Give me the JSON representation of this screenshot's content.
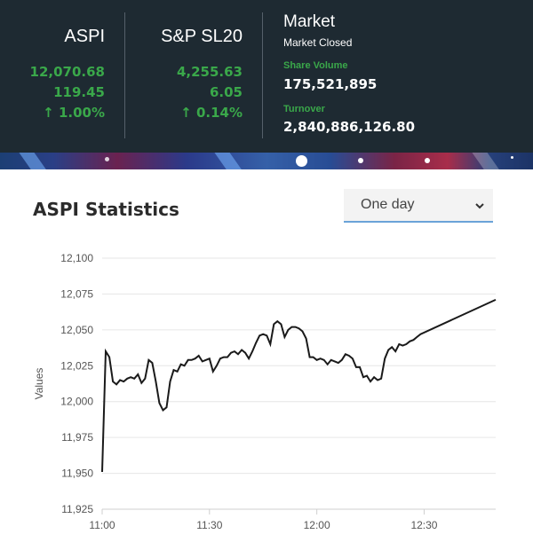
{
  "ticker": {
    "aspi": {
      "name": "ASPI",
      "value": "12,070.68",
      "change": "119.45",
      "percent": "1.00%"
    },
    "sp": {
      "name": "S&P SL20",
      "value": "4,255.63",
      "change": "6.05",
      "percent": "0.14%"
    },
    "market": {
      "title": "Market",
      "status": "Market Closed",
      "share_volume_label": "Share Volume",
      "share_volume": "175,521,895",
      "turnover_label": "Turnover",
      "turnover": "2,840,886,126.80"
    },
    "up_color": "#3aa84a"
  },
  "banner": {
    "active_slide": 1
  },
  "stats": {
    "title": "ASPI Statistics",
    "period_selected": "One day"
  },
  "chart_data": {
    "type": "line",
    "ylabel": "Values",
    "xlabel": "",
    "ylim": [
      11925,
      12100
    ],
    "yticks": [
      11925,
      11950,
      11975,
      12000,
      12025,
      12050,
      12075,
      12100
    ],
    "ytick_labels": [
      "11,925",
      "11,950",
      "11,975",
      "12,000",
      "12,025",
      "12,050",
      "12,075",
      "12,100"
    ],
    "xlim": [
      "11:00",
      "12:50"
    ],
    "xticks": [
      "11:00",
      "11:30",
      "12:00",
      "12:30"
    ],
    "grid": true,
    "series": [
      {
        "color": "#1a1a1a",
        "x": [
          "11:00",
          "11:01",
          "11:02",
          "11:03",
          "11:04",
          "11:05",
          "11:06",
          "11:07",
          "11:08",
          "11:09",
          "11:10",
          "11:11",
          "11:12",
          "11:13",
          "11:14",
          "11:15",
          "11:16",
          "11:17",
          "11:18",
          "11:19",
          "11:20",
          "11:21",
          "11:22",
          "11:23",
          "11:24",
          "11:25",
          "11:26",
          "11:27",
          "11:28",
          "11:29",
          "11:30",
          "11:31",
          "11:32",
          "11:33",
          "11:34",
          "11:35",
          "11:36",
          "11:37",
          "11:38",
          "11:39",
          "11:40",
          "11:41",
          "11:42",
          "11:43",
          "11:44",
          "11:45",
          "11:46",
          "11:47",
          "11:48",
          "11:49",
          "11:50",
          "11:51",
          "11:52",
          "11:53",
          "11:54",
          "11:55",
          "11:56",
          "11:57",
          "11:58",
          "11:59",
          "12:00",
          "12:01",
          "12:02",
          "12:03",
          "12:04",
          "12:05",
          "12:06",
          "12:07",
          "12:08",
          "12:09",
          "12:10",
          "12:11",
          "12:12",
          "12:13",
          "12:14",
          "12:15",
          "12:16",
          "12:17",
          "12:18",
          "12:19",
          "12:20",
          "12:21",
          "12:22",
          "12:23",
          "12:24",
          "12:25",
          "12:26",
          "12:27",
          "12:28",
          "12:29",
          "12:50"
        ],
        "values": [
          11951,
          12035,
          12031,
          12014,
          12012,
          12015,
          12014,
          12016,
          12017,
          12016,
          12019,
          12013,
          12016,
          12029,
          12027,
          12014,
          11999,
          11994,
          11996,
          12014,
          12022,
          12021,
          12026,
          12025,
          12029,
          12029,
          12030,
          12032,
          12028,
          12029,
          12030,
          12021,
          12025,
          12030,
          12031,
          12031,
          12034,
          12035,
          12033,
          12036,
          12034,
          12030,
          12035,
          12041,
          12046,
          12047,
          12046,
          12040,
          12054,
          12056,
          12054,
          12045,
          12050,
          12052,
          12052,
          12051,
          12049,
          12044,
          12031,
          12031,
          12029,
          12030,
          12029,
          12026,
          12029,
          12028,
          12027,
          12029,
          12033,
          12032,
          12030,
          12024,
          12024,
          12017,
          12018,
          12014,
          12017,
          12015,
          12016,
          12030,
          12036,
          12038,
          12035,
          12040,
          12039,
          12040,
          12042,
          12043,
          12045,
          12047,
          12071
        ]
      }
    ]
  }
}
